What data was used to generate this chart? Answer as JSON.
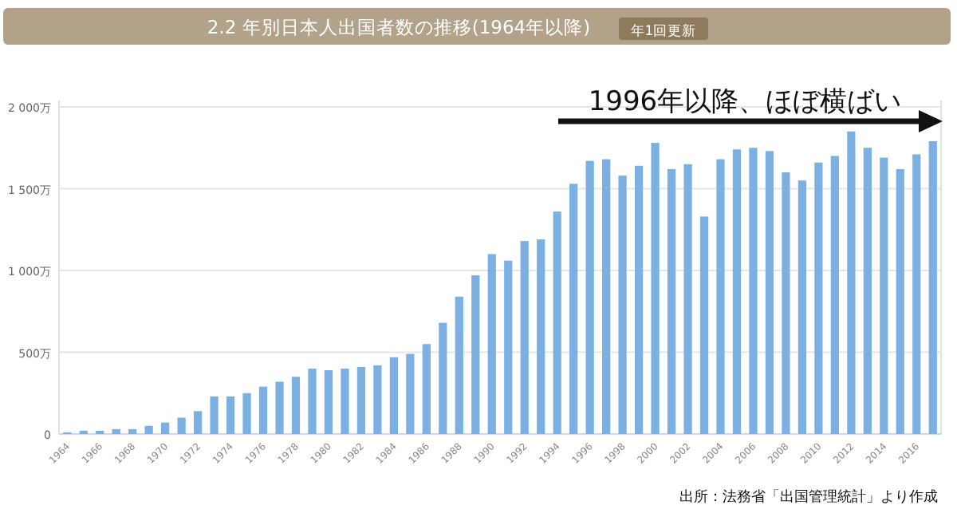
{
  "chart_data": {
    "type": "bar",
    "title": "2.2 年別日本人出国者数の推移(1964年以降)",
    "subtitle": "年1回更新",
    "categories": [
      "1964",
      null,
      "1966",
      null,
      "1968",
      null,
      "1970",
      null,
      "1972",
      null,
      "1974",
      null,
      "1976",
      null,
      "1978",
      null,
      "1980",
      null,
      "1982",
      null,
      "1984",
      null,
      "1986",
      null,
      "1988",
      null,
      "1990",
      null,
      "1992",
      null,
      "1994",
      null,
      "1996",
      null,
      "1998",
      null,
      "2000",
      null,
      "2002",
      null,
      "2004",
      null,
      "2006",
      null,
      "2008",
      null,
      "2010",
      null,
      "2012",
      null,
      "2014",
      null,
      "2016",
      null
    ],
    "values": [
      10,
      20,
      20,
      30,
      30,
      50,
      70,
      100,
      140,
      230,
      230,
      250,
      290,
      320,
      350,
      400,
      390,
      400,
      410,
      420,
      470,
      490,
      550,
      680,
      840,
      970,
      1100,
      1060,
      1180,
      1190,
      1360,
      1530,
      1670,
      1680,
      1580,
      1640,
      1780,
      1620,
      1650,
      1330,
      1680,
      1740,
      1750,
      1730,
      1600,
      1550,
      1660,
      1700,
      1850,
      1750,
      1690,
      1620,
      1710,
      1790
    ],
    "color": "#7cb0e2",
    "ylim": [
      0,
      2000
    ],
    "yticks": [
      {
        "value": 0,
        "label": "0"
      },
      {
        "value": 500,
        "label": "500万"
      },
      {
        "value": 1000,
        "label": "1 000万"
      },
      {
        "value": 1500,
        "label": "1 500万"
      },
      {
        "value": 2000,
        "label": "2 000万"
      }
    ],
    "grid": "y",
    "annotations": [
      "1996年以降、ほぼ横ばい",
      "出所：法務省「出国管理統計」より作成"
    ]
  }
}
